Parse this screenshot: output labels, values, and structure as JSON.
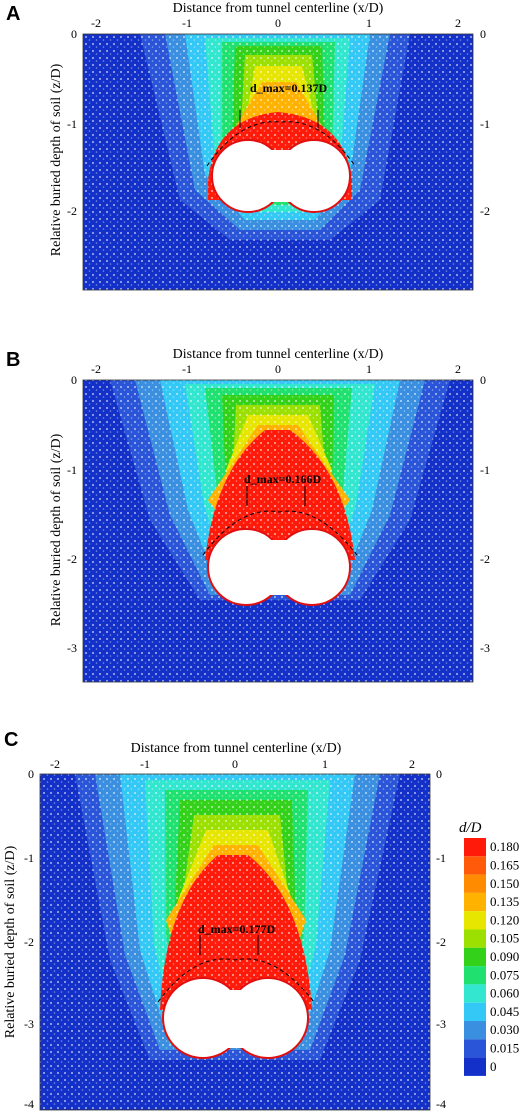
{
  "figure": {
    "panels": [
      {
        "letter": "A",
        "x_axis_title": "Distance from tunnel centerline (x/D)",
        "y_axis_title": "Relative buried depth of soil (z/D)",
        "x_ticks": [
          "-2",
          "-1",
          "0",
          "1",
          "2"
        ],
        "y_ticks": [
          "0",
          "-1",
          "-2"
        ],
        "annotation": "d_max=0.137D",
        "d_max": 0.137,
        "z_range": [
          -2.8,
          0
        ]
      },
      {
        "letter": "B",
        "x_axis_title": "Distance from tunnel centerline (x/D)",
        "y_axis_title": "Relative buried depth of soil (z/D)",
        "x_ticks": [
          "-2",
          "-1",
          "0",
          "1",
          "2"
        ],
        "y_ticks": [
          "0",
          "-1",
          "-2",
          "-3"
        ],
        "annotation": "d_max=0.166D",
        "d_max": 0.166,
        "z_range": [
          -3.5,
          0
        ]
      },
      {
        "letter": "C",
        "x_axis_title": "Distance from tunnel centerline (x/D)",
        "y_axis_title": "Relative buried depth of soil (z/D)",
        "x_ticks": [
          "-2",
          "-1",
          "0",
          "1",
          "2"
        ],
        "y_ticks": [
          "0",
          "-1",
          "-2",
          "-3",
          "-4"
        ],
        "annotation": "d_max=0.177D",
        "d_max": 0.177,
        "z_range": [
          -4.2,
          0
        ]
      }
    ],
    "colorbar": {
      "title": "d/D",
      "labels": [
        "0.180",
        "0.165",
        "0.150",
        "0.135",
        "0.120",
        "0.105",
        "0.090",
        "0.075",
        "0.060",
        "0.045",
        "0.030",
        "0.015",
        "0"
      ],
      "colors": [
        "#ff1a0a",
        "#ff5a0a",
        "#ff8c00",
        "#ffb300",
        "#e6e600",
        "#9be000",
        "#33d11a",
        "#20e070",
        "#33e6d0",
        "#33c8f5",
        "#3a8fe0",
        "#2a55d8",
        "#1330c8"
      ]
    }
  }
}
